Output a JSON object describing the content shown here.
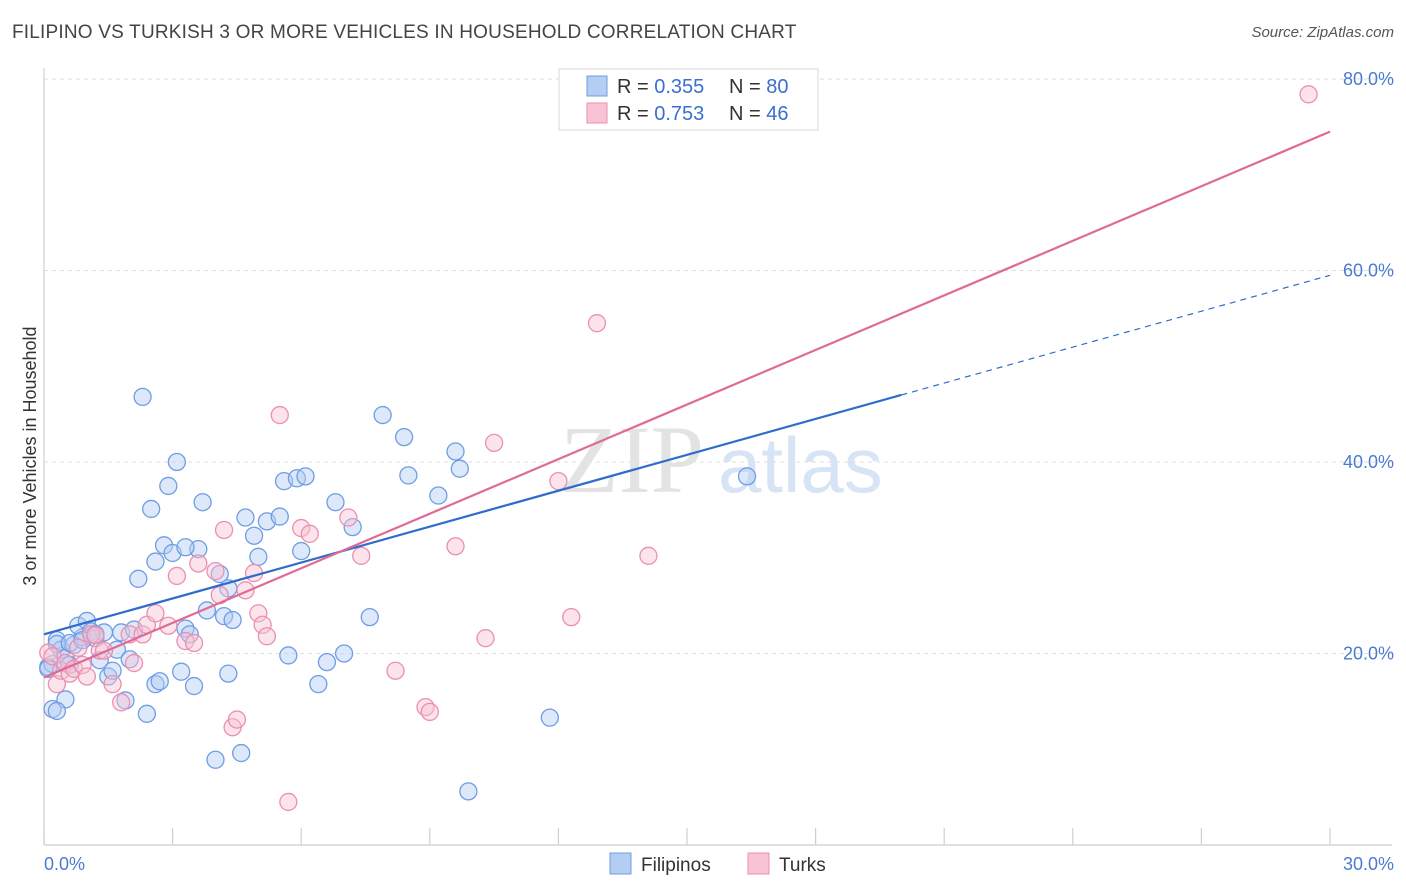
{
  "title": "FILIPINO VS TURKISH 3 OR MORE VEHICLES IN HOUSEHOLD CORRELATION CHART",
  "source": "Source: ZipAtlas.com",
  "watermark": {
    "zip": "ZIP",
    "atlas": "atlas"
  },
  "legend_top": [
    {
      "r_label": "R = ",
      "r_value": "0.355",
      "n_label": "N = ",
      "n_value": "80",
      "color": "#a9c6f0",
      "stroke": "#6f9de3"
    },
    {
      "r_label": "R = ",
      "r_value": "0.753",
      "n_label": "N = ",
      "n_value": "46",
      "color": "#f7bcd0",
      "stroke": "#ec8fb0"
    }
  ],
  "chart_data": {
    "type": "scatter",
    "title": "FILIPINO VS TURKISH 3 OR MORE VEHICLES IN HOUSEHOLD CORRELATION CHART",
    "xlabel": "",
    "ylabel": "3 or more Vehicles in Household",
    "xlim": [
      0,
      30
    ],
    "ylim": [
      0,
      80
    ],
    "x_tick_labels": [
      "0.0%",
      "30.0%"
    ],
    "y_ticks": [
      20,
      40,
      60,
      80
    ],
    "y_tick_labels": [
      "20.0%",
      "40.0%",
      "60.0%",
      "80.0%"
    ],
    "grid": true,
    "legend": [
      "Filipinos",
      "Turks"
    ],
    "series": [
      {
        "name": "Filipinos",
        "color": "#6f9de3",
        "fill": "#b3cdf3",
        "line_color": "#2f6ccb",
        "trend": {
          "x0": 0,
          "y0": 22.0,
          "x1": 20.0,
          "y1": 47.0,
          "dash_to_x": 30.0,
          "dash_to_y": 59.5
        },
        "points": [
          [
            0.1,
            18.6
          ],
          [
            0.2,
            18.9
          ],
          [
            0.3,
            21.4
          ],
          [
            0.4,
            20.4
          ],
          [
            0.5,
            19.6
          ],
          [
            0.6,
            18.8
          ],
          [
            0.7,
            20.9
          ],
          [
            0.2,
            14.2
          ],
          [
            0.5,
            15.2
          ],
          [
            0.3,
            21.0
          ],
          [
            0.6,
            21.1
          ],
          [
            0.9,
            21.7
          ],
          [
            0.8,
            22.9
          ],
          [
            1.0,
            23.4
          ],
          [
            1.1,
            22.3
          ],
          [
            1.2,
            21.6
          ],
          [
            1.4,
            22.2
          ],
          [
            1.3,
            19.3
          ],
          [
            1.5,
            17.6
          ],
          [
            1.6,
            18.2
          ],
          [
            1.7,
            20.4
          ],
          [
            1.8,
            22.2
          ],
          [
            1.9,
            15.1
          ],
          [
            2.0,
            19.4
          ],
          [
            2.1,
            22.5
          ],
          [
            2.2,
            27.8
          ],
          [
            2.3,
            46.8
          ],
          [
            2.4,
            13.7
          ],
          [
            2.5,
            35.1
          ],
          [
            2.6,
            16.8
          ],
          [
            2.7,
            17.1
          ],
          [
            2.8,
            31.3
          ],
          [
            2.9,
            37.5
          ],
          [
            3.0,
            30.5
          ],
          [
            3.1,
            40.0
          ],
          [
            3.2,
            18.1
          ],
          [
            3.3,
            22.6
          ],
          [
            3.4,
            22.0
          ],
          [
            3.5,
            16.6
          ],
          [
            3.6,
            30.9
          ],
          [
            3.7,
            35.8
          ],
          [
            3.8,
            24.5
          ],
          [
            4.0,
            8.9
          ],
          [
            4.1,
            28.3
          ],
          [
            4.2,
            23.9
          ],
          [
            4.3,
            17.9
          ],
          [
            4.4,
            23.5
          ],
          [
            4.6,
            9.6
          ],
          [
            4.7,
            34.2
          ],
          [
            4.9,
            32.3
          ],
          [
            5.2,
            33.8
          ],
          [
            5.5,
            34.3
          ],
          [
            5.6,
            38.0
          ],
          [
            5.7,
            19.8
          ],
          [
            5.9,
            38.3
          ],
          [
            6.1,
            38.5
          ],
          [
            6.4,
            16.8
          ],
          [
            6.6,
            19.1
          ],
          [
            6.8,
            35.8
          ],
          [
            7.0,
            20.0
          ],
          [
            7.2,
            33.2
          ],
          [
            7.6,
            23.8
          ],
          [
            7.9,
            44.9
          ],
          [
            8.4,
            42.6
          ],
          [
            8.5,
            38.6
          ],
          [
            9.2,
            36.5
          ],
          [
            9.6,
            41.1
          ],
          [
            9.7,
            39.3
          ],
          [
            9.9,
            5.6
          ],
          [
            11.8,
            13.3
          ],
          [
            16.4,
            38.5
          ],
          [
            0.1,
            18.4
          ],
          [
            0.3,
            14.0
          ],
          [
            0.9,
            21.4
          ],
          [
            1.2,
            22.0
          ],
          [
            2.6,
            29.6
          ],
          [
            3.3,
            31.1
          ],
          [
            4.3,
            26.8
          ],
          [
            5.0,
            30.1
          ],
          [
            6.0,
            30.7
          ]
        ]
      },
      {
        "name": "Turks",
        "color": "#ec8fb0",
        "fill": "#f7c3d5",
        "line_color": "#e06a96",
        "trend": {
          "x0": 0,
          "y0": 17.5,
          "x1": 30.0,
          "y1": 74.5
        },
        "points": [
          [
            0.1,
            20.1
          ],
          [
            0.2,
            19.7
          ],
          [
            0.3,
            16.8
          ],
          [
            0.4,
            18.2
          ],
          [
            0.5,
            19.0
          ],
          [
            0.6,
            17.9
          ],
          [
            0.7,
            18.4
          ],
          [
            0.8,
            20.6
          ],
          [
            0.9,
            18.8
          ],
          [
            1.0,
            17.6
          ],
          [
            1.1,
            22.0
          ],
          [
            1.2,
            21.9
          ],
          [
            1.3,
            20.3
          ],
          [
            1.4,
            20.3
          ],
          [
            1.6,
            16.8
          ],
          [
            1.8,
            14.9
          ],
          [
            2.0,
            22.0
          ],
          [
            2.1,
            19.0
          ],
          [
            2.3,
            22.0
          ],
          [
            2.4,
            23.0
          ],
          [
            2.6,
            24.2
          ],
          [
            2.9,
            22.9
          ],
          [
            3.1,
            28.1
          ],
          [
            3.3,
            21.3
          ],
          [
            3.5,
            21.1
          ],
          [
            3.6,
            29.4
          ],
          [
            4.0,
            28.6
          ],
          [
            4.1,
            26.1
          ],
          [
            4.2,
            32.9
          ],
          [
            4.4,
            12.3
          ],
          [
            4.5,
            13.1
          ],
          [
            4.7,
            26.6
          ],
          [
            4.9,
            28.4
          ],
          [
            5.0,
            24.2
          ],
          [
            5.1,
            23.0
          ],
          [
            5.2,
            21.8
          ],
          [
            5.5,
            44.9
          ],
          [
            5.7,
            4.5
          ],
          [
            6.0,
            33.1
          ],
          [
            6.2,
            32.5
          ],
          [
            7.1,
            34.2
          ],
          [
            7.4,
            30.2
          ],
          [
            8.2,
            18.2
          ],
          [
            8.9,
            14.4
          ],
          [
            9.0,
            13.9
          ],
          [
            9.6,
            31.2
          ]
        ],
        "extra_points": [
          [
            10.3,
            21.6
          ],
          [
            10.5,
            42.0
          ],
          [
            12.0,
            38.0
          ],
          [
            12.3,
            23.8
          ],
          [
            12.9,
            54.5
          ],
          [
            14.1,
            30.2
          ],
          [
            29.5,
            78.4
          ]
        ]
      }
    ]
  },
  "bottom_legend": [
    {
      "label": "Filipinos",
      "color": "#b3cdf3",
      "stroke": "#6f9de3"
    },
    {
      "label": "Turks",
      "color": "#f7c3d5",
      "stroke": "#ec8fb0"
    }
  ]
}
